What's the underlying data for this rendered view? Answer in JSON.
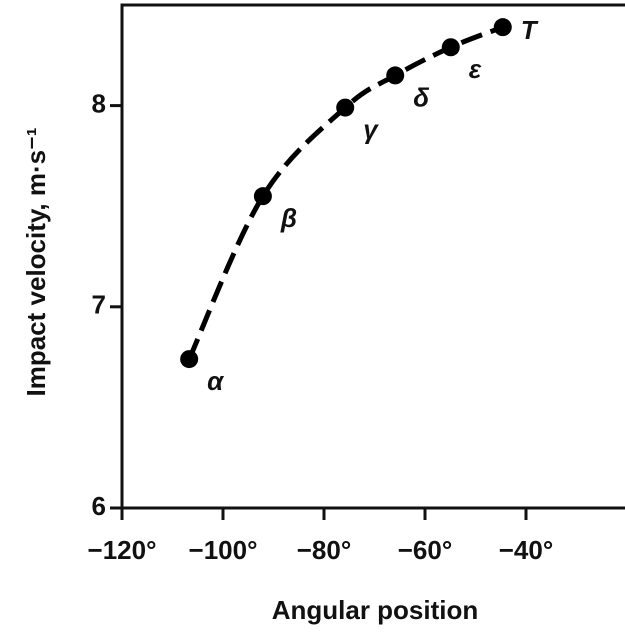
{
  "chart_data": {
    "type": "scatter",
    "x_label": "Angular position",
    "y_label": "Impact velocity, m·s⁻¹",
    "xlim": [
      -120,
      -20
    ],
    "xticks": [
      {
        "value": -120,
        "label": "−120°"
      },
      {
        "value": -100,
        "label": "−100°"
      },
      {
        "value": -80,
        "label": "−80°"
      },
      {
        "value": -60,
        "label": "−60°"
      },
      {
        "value": -40,
        "label": "−40°"
      }
    ],
    "ylim": [
      6,
      8.5
    ],
    "yticks": [
      6,
      7,
      8
    ],
    "series": [
      {
        "x": [
          -106.7,
          -92.1,
          -75.8,
          -65.9,
          -54.9,
          -44.6
        ],
        "values": [
          6.74,
          7.55,
          7.99,
          8.15,
          8.29,
          8.39
        ],
        "labels": [
          "α",
          "β",
          "γ",
          "δ",
          "ε",
          "T"
        ],
        "color": "#000000"
      }
    ]
  }
}
